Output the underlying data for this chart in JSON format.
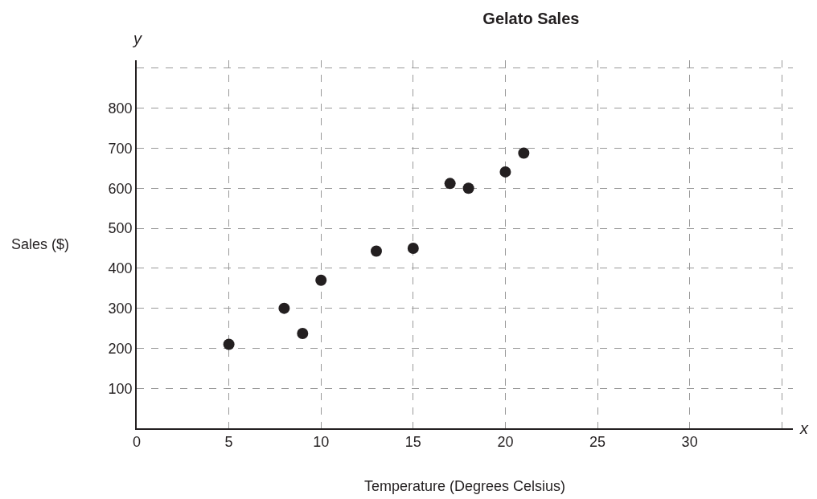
{
  "chart_data": {
    "type": "scatter",
    "title": "Gelato Sales",
    "xlabel": "Temperature (Degrees Celsius)",
    "ylabel": "Sales ($)",
    "annotations": [
      "x",
      "y"
    ],
    "x": [
      5,
      8,
      9,
      10,
      13,
      15,
      17,
      18,
      20,
      21
    ],
    "values": [
      210,
      300,
      237,
      370,
      443,
      450,
      612,
      600,
      641,
      688
    ],
    "color": "#231f20",
    "marker": "circle",
    "xlim": [
      0,
      35.6
    ],
    "ylim": [
      0,
      920
    ],
    "xticks": [
      0,
      5,
      10,
      15,
      20,
      25,
      30,
      {
        "value": 35,
        "label": null
      }
    ],
    "yticks": [
      100,
      200,
      300,
      400,
      500,
      600,
      700,
      800,
      {
        "value": 900,
        "label": null
      }
    ],
    "grid": true,
    "legend": false
  }
}
